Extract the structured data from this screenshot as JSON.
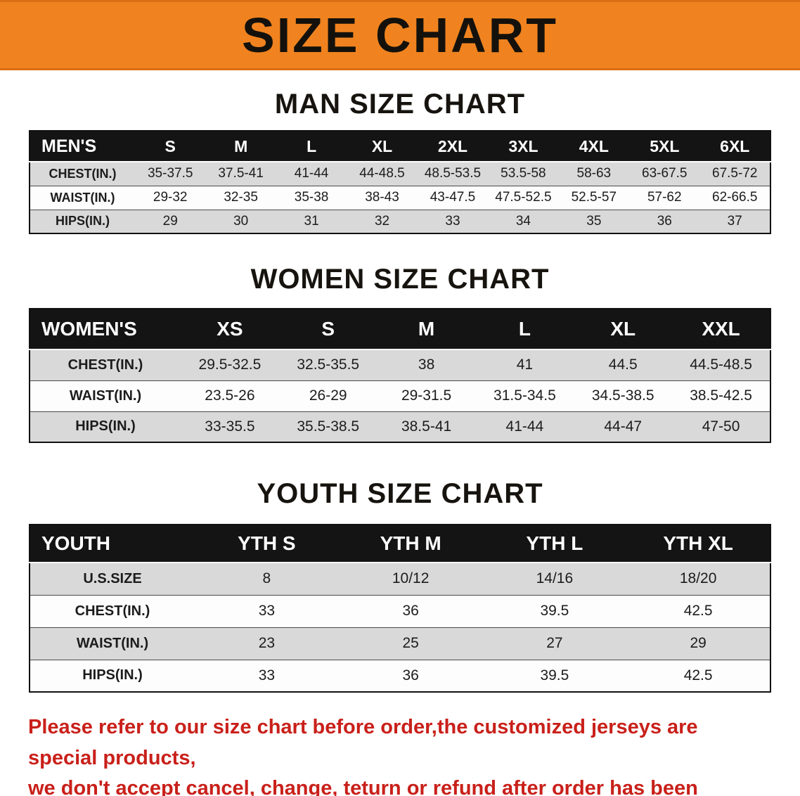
{
  "banner": {
    "title": "SIZE CHART"
  },
  "sections": [
    {
      "heading": "MAN SIZE CHART",
      "table": {
        "header": [
          "MEN'S",
          "S",
          "M",
          "L",
          "XL",
          "2XL",
          "3XL",
          "4XL",
          "5XL",
          "6XL"
        ],
        "rows": [
          [
            "CHEST(IN.)",
            "35-37.5",
            "37.5-41",
            "41-44",
            "44-48.5",
            "48.5-53.5",
            "53.5-58",
            "58-63",
            "63-67.5",
            "67.5-72"
          ],
          [
            "WAIST(IN.)",
            "29-32",
            "32-35",
            "35-38",
            "38-43",
            "43-47.5",
            "47.5-52.5",
            "52.5-57",
            "57-62",
            "62-66.5"
          ],
          [
            "HIPS(IN.)",
            "29",
            "30",
            "31",
            "32",
            "33",
            "34",
            "35",
            "36",
            "37"
          ]
        ]
      }
    },
    {
      "heading": "WOMEN SIZE CHART",
      "table": {
        "header": [
          "WOMEN'S",
          "XS",
          "S",
          "M",
          "L",
          "XL",
          "XXL"
        ],
        "rows": [
          [
            "CHEST(IN.)",
            "29.5-32.5",
            "32.5-35.5",
            "38",
            "41",
            "44.5",
            "44.5-48.5"
          ],
          [
            "WAIST(IN.)",
            "23.5-26",
            "26-29",
            "29-31.5",
            "31.5-34.5",
            "34.5-38.5",
            "38.5-42.5"
          ],
          [
            "HIPS(IN.)",
            "33-35.5",
            "35.5-38.5",
            "38.5-41",
            "41-44",
            "44-47",
            "47-50"
          ]
        ]
      }
    },
    {
      "heading": "YOUTH SIZE CHART",
      "table": {
        "header": [
          "YOUTH",
          "YTH S",
          "YTH M",
          "YTH L",
          "YTH XL"
        ],
        "rows": [
          [
            "U.S.SIZE",
            "8",
            "10/12",
            "14/16",
            "18/20"
          ],
          [
            "CHEST(IN.)",
            "33",
            "36",
            "39.5",
            "42.5"
          ],
          [
            "WAIST(IN.)",
            "23",
            "25",
            "27",
            "29"
          ],
          [
            "HIPS(IN.)",
            "33",
            "36",
            "39.5",
            "42.5"
          ]
        ]
      }
    }
  ],
  "disclaimer": {
    "line1": "Please refer to our size chart before order,the customized jerseys are special products,",
    "line2": "we don't accept cancel, change, teturn or refund after order has been placed!"
  },
  "colors": {
    "banner_bg": "#f0831f",
    "table_header_bg": "#141414",
    "row_alt_bg": "#d9d9d9",
    "disclaimer_text": "#c9201a"
  }
}
